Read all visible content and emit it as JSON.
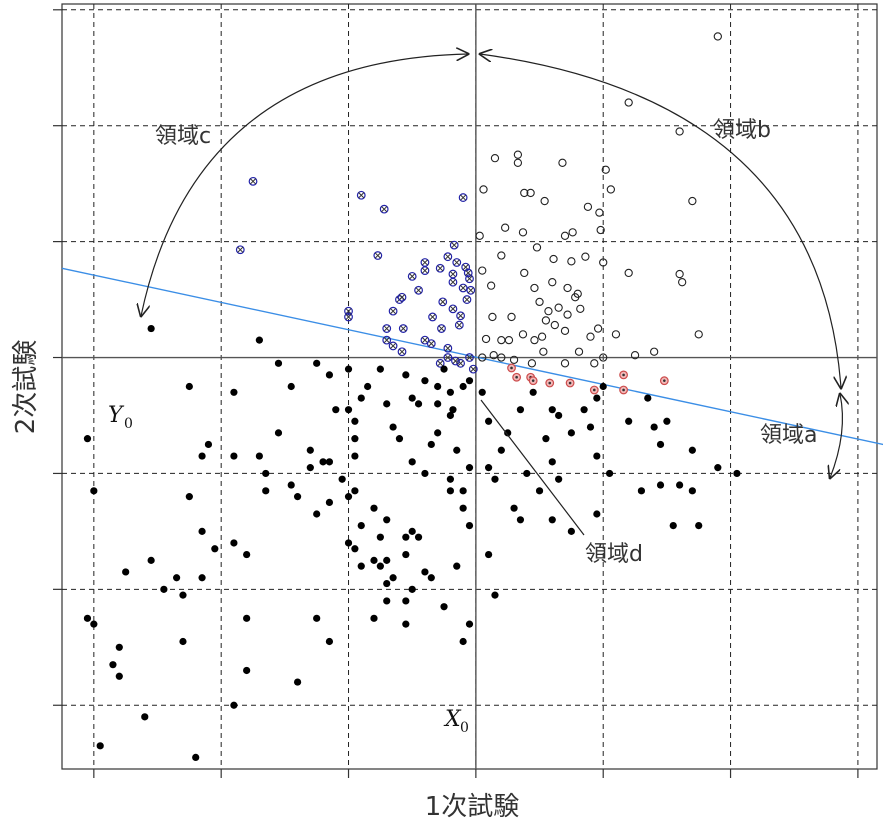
{
  "chart_data": {
    "type": "scatter",
    "title": "",
    "xlabel": "1次試験",
    "ylabel": "2次試験",
    "grid": true,
    "x_range": [
      -1.25,
      5.15
    ],
    "y_range": [
      -1.55,
      5.05
    ],
    "x_ticks": [
      -1,
      0,
      1,
      2,
      3,
      4,
      5
    ],
    "y_ticks": [
      -1,
      0,
      1,
      2,
      3,
      4,
      5
    ],
    "cutoff_x": 2,
    "cutoff_y": 2,
    "regression_line": {
      "x": [
        -1.25,
        5.15
      ],
      "y": [
        2.77,
        1.26
      ]
    },
    "labels": {
      "x0_symbol": "X",
      "x0_sub": "0",
      "y0_symbol": "Y",
      "y0_sub": "0",
      "region_a": "領域a",
      "region_b": "領域b",
      "region_c": "領域c",
      "region_d": "領域d"
    },
    "series": [
      {
        "key": "region_b_points",
        "style": "open-circle",
        "color": "#222222",
        "points": [
          [
            3.9,
            4.77
          ],
          [
            3.2,
            4.2
          ],
          [
            3.6,
            3.95
          ],
          [
            2.15,
            3.72
          ],
          [
            2.33,
            3.75
          ],
          [
            2.33,
            3.68
          ],
          [
            2.68,
            3.68
          ],
          [
            3.02,
            3.62
          ],
          [
            2.06,
            3.45
          ],
          [
            2.38,
            3.42
          ],
          [
            2.43,
            3.42
          ],
          [
            3.06,
            3.45
          ],
          [
            3.7,
            3.35
          ],
          [
            2.54,
            3.35
          ],
          [
            2.88,
            3.3
          ],
          [
            2.97,
            3.25
          ],
          [
            2.23,
            3.12
          ],
          [
            2.37,
            3.08
          ],
          [
            2.7,
            3.05
          ],
          [
            2.76,
            3.08
          ],
          [
            2.98,
            3.1
          ],
          [
            2.03,
            3.05
          ],
          [
            2.48,
            2.95
          ],
          [
            2.2,
            2.88
          ],
          [
            2.61,
            2.85
          ],
          [
            2.75,
            2.83
          ],
          [
            2.86,
            2.87
          ],
          [
            3.0,
            2.82
          ],
          [
            2.05,
            2.75
          ],
          [
            2.38,
            2.73
          ],
          [
            2.12,
            2.62
          ],
          [
            2.46,
            2.6
          ],
          [
            2.6,
            2.65
          ],
          [
            2.72,
            2.6
          ],
          [
            2.8,
            2.55
          ],
          [
            3.2,
            2.73
          ],
          [
            3.6,
            2.72
          ],
          [
            3.62,
            2.65
          ],
          [
            2.78,
            2.52
          ],
          [
            2.5,
            2.48
          ],
          [
            2.65,
            2.43
          ],
          [
            2.72,
            2.37
          ],
          [
            2.82,
            2.42
          ],
          [
            2.28,
            2.35
          ],
          [
            2.55,
            2.32
          ],
          [
            2.57,
            2.4
          ],
          [
            2.37,
            2.2
          ],
          [
            2.46,
            2.15
          ],
          [
            2.52,
            2.18
          ],
          [
            2.62,
            2.28
          ],
          [
            2.7,
            2.23
          ],
          [
            2.9,
            2.18
          ],
          [
            2.96,
            2.25
          ],
          [
            3.1,
            2.2
          ],
          [
            2.08,
            2.16
          ],
          [
            2.2,
            2.15
          ],
          [
            2.26,
            2.15
          ],
          [
            2.13,
            2.35
          ],
          [
            3.4,
            2.05
          ],
          [
            3.75,
            2.2
          ],
          [
            2.05,
            2.0
          ],
          [
            2.14,
            2.02
          ],
          [
            2.2,
            2.0
          ],
          [
            2.3,
            1.98
          ],
          [
            2.44,
            1.95
          ],
          [
            2.53,
            2.05
          ],
          [
            2.7,
            1.95
          ],
          [
            2.81,
            2.05
          ],
          [
            2.93,
            1.95
          ],
          [
            3.0,
            2.0
          ],
          [
            3.25,
            2.02
          ]
        ]
      },
      {
        "key": "region_a_points",
        "style": "red-circle-dot",
        "color": "#cc4b4b",
        "points": [
          [
            2.28,
            1.91
          ],
          [
            2.32,
            1.83
          ],
          [
            2.43,
            1.83
          ],
          [
            2.45,
            1.8
          ],
          [
            2.58,
            1.78
          ],
          [
            2.74,
            1.78
          ],
          [
            2.93,
            1.72
          ],
          [
            3.16,
            1.72
          ],
          [
            3.16,
            1.85
          ],
          [
            3.48,
            1.8
          ]
        ]
      },
      {
        "key": "region_c_points",
        "style": "blue-circle-x",
        "color": "#2222aa",
        "points": [
          [
            0.25,
            3.52
          ],
          [
            1.1,
            3.4
          ],
          [
            1.28,
            3.28
          ],
          [
            1.9,
            3.38
          ],
          [
            1.83,
            2.97
          ],
          [
            0.15,
            2.93
          ],
          [
            1.23,
            2.88
          ],
          [
            1.78,
            2.87
          ],
          [
            1.85,
            2.82
          ],
          [
            1.72,
            2.77
          ],
          [
            1.82,
            2.72
          ],
          [
            1.92,
            2.78
          ],
          [
            1.6,
            2.82
          ],
          [
            1.6,
            2.75
          ],
          [
            1.82,
            2.65
          ],
          [
            1.9,
            2.6
          ],
          [
            1.95,
            2.68
          ],
          [
            1.94,
            2.73
          ],
          [
            1.96,
            2.58
          ],
          [
            1.5,
            2.7
          ],
          [
            1.55,
            2.58
          ],
          [
            1.93,
            2.5
          ],
          [
            1.74,
            2.48
          ],
          [
            1.82,
            2.42
          ],
          [
            1.4,
            2.5
          ],
          [
            1.42,
            2.52
          ],
          [
            1.66,
            2.35
          ],
          [
            1.88,
            2.36
          ],
          [
            1.0,
            2.4
          ],
          [
            1.0,
            2.35
          ],
          [
            1.35,
            2.4
          ],
          [
            1.3,
            2.25
          ],
          [
            1.43,
            2.25
          ],
          [
            1.87,
            2.28
          ],
          [
            1.6,
            2.15
          ],
          [
            1.73,
            2.25
          ],
          [
            1.3,
            2.15
          ],
          [
            1.35,
            2.1
          ],
          [
            1.65,
            2.12
          ],
          [
            1.42,
            2.05
          ],
          [
            1.78,
            2.0
          ],
          [
            1.78,
            2.08
          ],
          [
            1.72,
            1.95
          ],
          [
            1.88,
            1.95
          ],
          [
            1.95,
            2.0
          ],
          [
            1.98,
            1.9
          ],
          [
            1.84,
            1.97
          ]
        ]
      },
      {
        "key": "region_d_points",
        "style": "filled-circle",
        "color": "#000000",
        "points": [
          [
            -0.95,
            -1.35
          ],
          [
            -0.6,
            -1.1
          ],
          [
            -0.2,
            -1.45
          ],
          [
            0.1,
            -1.0
          ],
          [
            0.2,
            -0.7
          ],
          [
            0.6,
            -0.8
          ],
          [
            0.75,
            -0.25
          ],
          [
            0.85,
            -0.45
          ],
          [
            0.2,
            -0.25
          ],
          [
            -1.0,
            -0.3
          ],
          [
            -0.8,
            -0.75
          ],
          [
            -0.3,
            -0.45
          ],
          [
            0.1,
            0.4
          ],
          [
            0.2,
            0.3
          ],
          [
            -0.75,
            0.15
          ],
          [
            -0.8,
            -0.5
          ],
          [
            -0.85,
            -0.65
          ],
          [
            -1.05,
            -0.25
          ],
          [
            -1.0,
            0.85
          ],
          [
            -1.05,
            1.3
          ],
          [
            -0.25,
            0.8
          ],
          [
            -0.15,
            0.5
          ],
          [
            -0.05,
            0.35
          ],
          [
            -0.15,
            0.1
          ],
          [
            -0.35,
            0.1
          ],
          [
            -0.45,
            0.0
          ],
          [
            -0.3,
            -0.05
          ],
          [
            -0.55,
            0.25
          ],
          [
            -0.1,
            1.25
          ],
          [
            0.1,
            1.15
          ],
          [
            0.3,
            1.15
          ],
          [
            0.35,
            0.85
          ],
          [
            0.45,
            1.35
          ],
          [
            0.55,
            0.9
          ],
          [
            0.6,
            0.8
          ],
          [
            0.35,
            1.0
          ],
          [
            0.75,
            0.65
          ],
          [
            0.7,
            1.05
          ],
          [
            0.85,
            1.1
          ],
          [
            0.95,
            0.95
          ],
          [
            1.05,
            0.85
          ],
          [
            1.2,
            0.7
          ],
          [
            1.25,
            0.45
          ],
          [
            1.45,
            0.3
          ],
          [
            1.3,
            0.25
          ],
          [
            1.25,
            0.2
          ],
          [
            1.5,
            0.0
          ],
          [
            1.65,
            0.1
          ],
          [
            1.55,
            0.45
          ],
          [
            1.6,
            0.15
          ],
          [
            1.3,
            0.05
          ],
          [
            1.3,
            -0.1
          ],
          [
            1.45,
            -0.1
          ],
          [
            1.2,
            -0.25
          ],
          [
            1.45,
            -0.3
          ],
          [
            1.75,
            -0.15
          ],
          [
            1.85,
            0.2
          ],
          [
            1.95,
            -0.3
          ],
          [
            1.9,
            -0.45
          ],
          [
            1.95,
            0.55
          ],
          [
            1.8,
            0.85
          ],
          [
            1.5,
            0.5
          ],
          [
            1.45,
            0.45
          ],
          [
            1.3,
            0.6
          ],
          [
            1.2,
            0.25
          ],
          [
            1.35,
            0.1
          ],
          [
            1.1,
            0.2
          ],
          [
            1.05,
            0.35
          ],
          [
            1.1,
            0.55
          ],
          [
            1.0,
            0.4
          ],
          [
            1.0,
            0.8
          ],
          [
            1.05,
            1.15
          ],
          [
            1.05,
            1.45
          ],
          [
            1.0,
            1.55
          ],
          [
            1.0,
            1.9
          ],
          [
            1.05,
            1.3
          ],
          [
            1.1,
            1.65
          ],
          [
            1.25,
            1.9
          ],
          [
            1.3,
            1.6
          ],
          [
            1.35,
            1.4
          ],
          [
            1.4,
            1.3
          ],
          [
            1.5,
            1.1
          ],
          [
            1.6,
            1.0
          ],
          [
            1.65,
            1.25
          ],
          [
            1.7,
            1.35
          ],
          [
            1.8,
            1.5
          ],
          [
            1.85,
            1.2
          ],
          [
            1.8,
            0.95
          ],
          [
            1.9,
            0.85
          ],
          [
            1.9,
            0.7
          ],
          [
            1.95,
            1.05
          ],
          [
            1.45,
            1.85
          ],
          [
            1.55,
            1.6
          ],
          [
            1.6,
            1.8
          ],
          [
            1.7,
            1.75
          ],
          [
            1.7,
            1.6
          ],
          [
            1.75,
            1.9
          ],
          [
            1.8,
            1.7
          ],
          [
            1.82,
            1.55
          ],
          [
            1.9,
            1.75
          ],
          [
            1.95,
            1.8
          ],
          [
            2.05,
            1.7
          ],
          [
            2.1,
            1.45
          ],
          [
            2.2,
            1.2
          ],
          [
            2.25,
            1.35
          ],
          [
            2.1,
            1.05
          ],
          [
            2.15,
            0.95
          ],
          [
            2.3,
            0.7
          ],
          [
            2.35,
            0.6
          ],
          [
            2.35,
            1.55
          ],
          [
            2.55,
            1.3
          ],
          [
            2.6,
            1.1
          ],
          [
            2.65,
            1.5
          ],
          [
            2.75,
            1.35
          ],
          [
            2.45,
            1.7
          ],
          [
            2.6,
            1.55
          ],
          [
            2.85,
            1.55
          ],
          [
            2.9,
            1.4
          ],
          [
            2.95,
            1.65
          ],
          [
            3.0,
            1.75
          ],
          [
            3.2,
            1.45
          ],
          [
            3.4,
            1.4
          ],
          [
            3.5,
            1.45
          ],
          [
            2.95,
            1.15
          ],
          [
            3.05,
            1.0
          ],
          [
            3.35,
            1.65
          ],
          [
            3.45,
            1.25
          ],
          [
            3.3,
            0.85
          ],
          [
            3.45,
            0.9
          ],
          [
            3.6,
            0.9
          ],
          [
            3.55,
            0.55
          ],
          [
            3.7,
            1.2
          ],
          [
            3.7,
            0.85
          ],
          [
            3.75,
            0.55
          ],
          [
            3.9,
            1.05
          ],
          [
            4.05,
            1.0
          ],
          [
            2.15,
            -0.05
          ],
          [
            2.95,
            0.65
          ],
          [
            2.75,
            0.5
          ],
          [
            2.6,
            0.6
          ],
          [
            2.5,
            0.85
          ],
          [
            2.65,
            0.95
          ],
          [
            2.4,
            1.0
          ],
          [
            2.1,
            0.3
          ],
          [
            1.5,
            1.65
          ],
          [
            1.15,
            1.75
          ],
          [
            0.9,
            1.55
          ],
          [
            0.85,
            1.85
          ],
          [
            0.75,
            1.95
          ],
          [
            0.55,
            1.75
          ],
          [
            0.45,
            1.95
          ],
          [
            0.3,
            2.15
          ],
          [
            0.1,
            1.7
          ],
          [
            -0.15,
            1.15
          ],
          [
            -0.25,
            1.75
          ],
          [
            -0.55,
            2.25
          ],
          [
            0.7,
            1.2
          ],
          [
            0.8,
            1.1
          ],
          [
            0.85,
            0.75
          ]
        ]
      }
    ]
  }
}
